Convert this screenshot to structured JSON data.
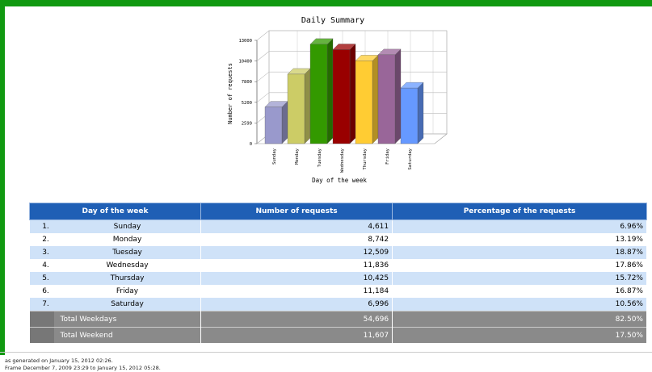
{
  "chart_data": {
    "type": "bar",
    "title": "Daily Summary",
    "x_label": "Day of the week",
    "y_label": "Number of requests",
    "categories": [
      "Sunday",
      "Monday",
      "Tuesday",
      "Wednesday",
      "Thursday",
      "Friday",
      "Saturday"
    ],
    "values": [
      4611,
      8742,
      12509,
      11836,
      10425,
      11184,
      6996
    ],
    "colors": [
      "#9999cc",
      "#cccc66",
      "#339900",
      "#990000",
      "#ffcc33",
      "#996699",
      "#6699ff"
    ],
    "ylim": [
      0,
      13000
    ],
    "yticks": [
      0,
      2599,
      5200,
      7800,
      10400,
      13000
    ],
    "grid": true
  },
  "table": {
    "columns": [
      "Day of the week",
      "Number of requests",
      "Percentage of the requests"
    ],
    "rows": [
      [
        "1.",
        "Sunday",
        "4,611",
        "6.96%"
      ],
      [
        "2.",
        "Monday",
        "8,742",
        "13.19%"
      ],
      [
        "3.",
        "Tuesday",
        "12,509",
        "18.87%"
      ],
      [
        "4.",
        "Wednesday",
        "11,836",
        "17.86%"
      ],
      [
        "5.",
        "Thursday",
        "10,425",
        "15.72%"
      ],
      [
        "6.",
        "Friday",
        "11,184",
        "16.87%"
      ],
      [
        "7.",
        "Saturday",
        "6,996",
        "10.56%"
      ]
    ],
    "totals": [
      [
        "Total Weekdays",
        "54,696",
        "82.50%"
      ],
      [
        "Total Weekend",
        "11,607",
        "17.50%"
      ]
    ]
  },
  "footer": {
    "lines": [
      "as generated on January 15, 2012 02:26.",
      "Frame December 7, 2009 23:29 to January 15, 2012 05:28."
    ]
  }
}
